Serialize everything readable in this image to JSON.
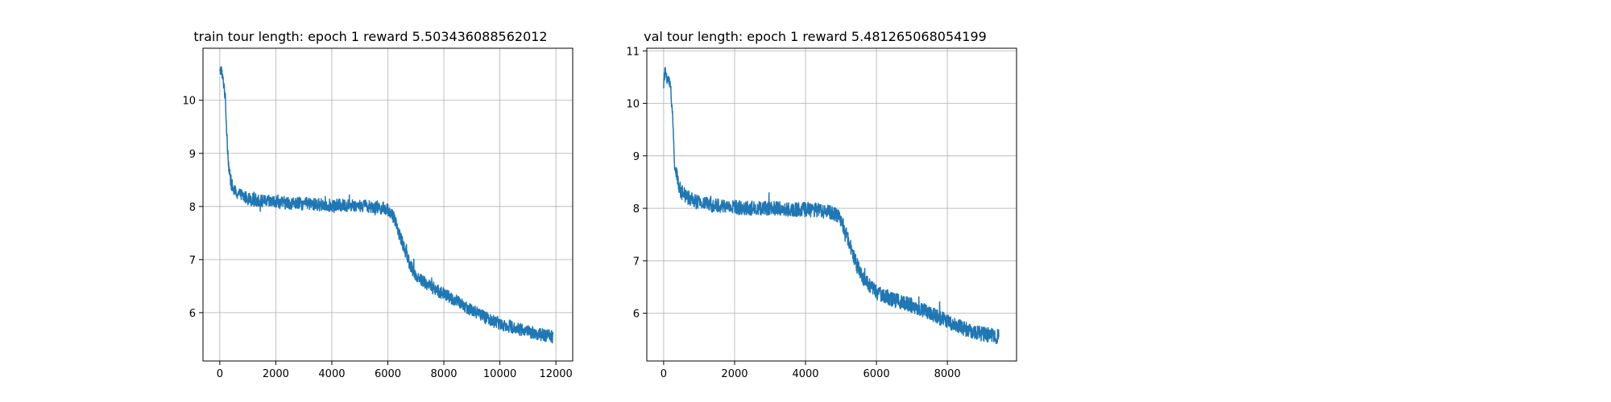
{
  "chart_data": [
    {
      "type": "line",
      "title": "train tour length: epoch 1 reward 5.503436088562012",
      "xlabel": "",
      "ylabel": "",
      "xlim": [
        -600,
        12600
      ],
      "ylim": [
        5.09,
        10.98
      ],
      "xticks": [
        0,
        2000,
        4000,
        6000,
        8000,
        10000,
        12000
      ],
      "xtick_labels": [
        "0",
        "2000",
        "4000",
        "6000",
        "8000",
        "10000",
        "12000"
      ],
      "yticks": [
        6,
        7,
        8,
        9,
        10
      ],
      "ytick_labels": [
        "6",
        "7",
        "8",
        "9",
        "10"
      ],
      "grid": true,
      "line_color": "#1f77b4",
      "series": [
        {
          "x": [
            0,
            50,
            100,
            150,
            200,
            250,
            300,
            350,
            400,
            500,
            600,
            800,
            1000,
            1500,
            2000,
            3000,
            4000,
            5000,
            5500,
            6000,
            6200,
            6400,
            6600,
            6800,
            7000,
            7500,
            8000,
            8500,
            9000,
            9500,
            10000,
            10500,
            11000,
            11500,
            11900
          ],
          "y": [
            10.5,
            10.6,
            10.4,
            10.3,
            10.0,
            9.4,
            8.9,
            8.6,
            8.45,
            8.3,
            8.25,
            8.2,
            8.15,
            8.1,
            8.08,
            8.05,
            8.02,
            8.02,
            8.0,
            7.95,
            7.8,
            7.5,
            7.2,
            6.9,
            6.7,
            6.5,
            6.35,
            6.2,
            6.05,
            5.9,
            5.8,
            5.72,
            5.65,
            5.58,
            5.55
          ],
          "noise_amplitude": 0.12
        }
      ]
    },
    {
      "type": "line",
      "title": "val tour length: epoch 1 reward 5.481265068054199",
      "xlabel": "",
      "ylabel": "",
      "xlim": [
        -475,
        9950
      ],
      "ylim": [
        5.09,
        11.05
      ],
      "xticks": [
        0,
        2000,
        4000,
        6000,
        8000
      ],
      "xtick_labels": [
        "0",
        "2000",
        "4000",
        "6000",
        "8000"
      ],
      "yticks": [
        6,
        7,
        8,
        9,
        10,
        11
      ],
      "ytick_labels": [
        "6",
        "7",
        "8",
        "9",
        "10",
        "11"
      ],
      "grid": true,
      "line_color": "#1f77b4",
      "series": [
        {
          "x": [
            0,
            50,
            100,
            150,
            200,
            250,
            300,
            400,
            500,
            700,
            1000,
            1500,
            2000,
            2500,
            3000,
            3500,
            4000,
            4500,
            4800,
            5000,
            5200,
            5400,
            5600,
            6000,
            6500,
            7000,
            7500,
            8000,
            8500,
            9000,
            9450
          ],
          "y": [
            10.4,
            10.6,
            10.5,
            10.4,
            10.3,
            9.8,
            8.9,
            8.5,
            8.3,
            8.2,
            8.1,
            8.05,
            8.02,
            8.0,
            8.0,
            7.98,
            7.98,
            7.95,
            7.9,
            7.8,
            7.4,
            7.0,
            6.7,
            6.4,
            6.25,
            6.15,
            6.0,
            5.85,
            5.7,
            5.6,
            5.55
          ],
          "noise_amplitude": 0.14
        }
      ]
    }
  ]
}
